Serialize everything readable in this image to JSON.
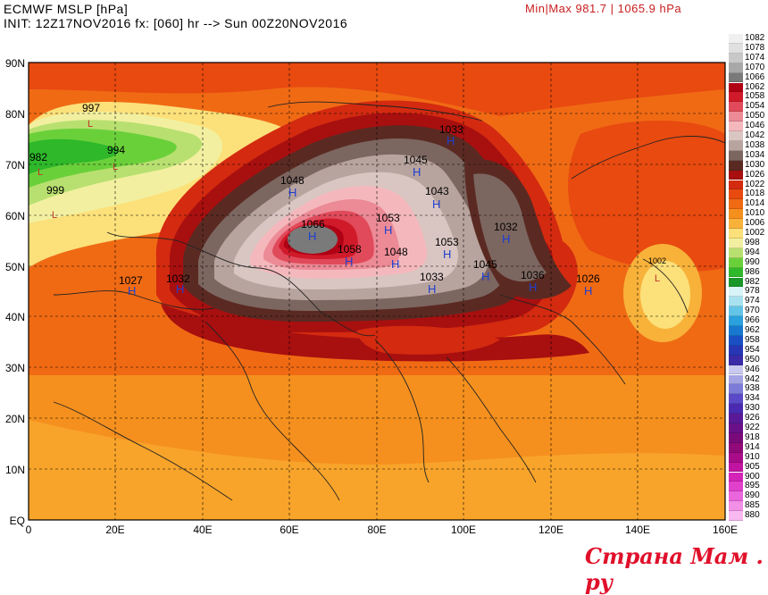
{
  "header": {
    "title": "ECMWF MSLP [hPa]",
    "init": "INIT: 12Z17NOV2016 fx: [060] hr --> Sun 00Z20NOV2016",
    "minmax": "Min|Max 981.7 | 1065.9 hPa"
  },
  "axes": {
    "lat_labels": [
      "90N",
      "80N",
      "70N",
      "60N",
      "50N",
      "40N",
      "30N",
      "20N",
      "10N",
      "EQ"
    ],
    "lon_labels": [
      "0",
      "20E",
      "40E",
      "60E",
      "80E",
      "100E",
      "120E",
      "140E",
      "160E"
    ]
  },
  "colorbar": [
    {
      "label": "1082",
      "color": "#f0f0f0"
    },
    {
      "label": "1078",
      "color": "#e0e0e0"
    },
    {
      "label": "1074",
      "color": "#c8c8c8"
    },
    {
      "label": "1070",
      "color": "#a8a8a8"
    },
    {
      "label": "1066",
      "color": "#7a7a7a"
    },
    {
      "label": "1062",
      "color": "#b00014"
    },
    {
      "label": "1058",
      "color": "#d01a2a"
    },
    {
      "label": "1054",
      "color": "#e04a5a"
    },
    {
      "label": "1050",
      "color": "#ec8a96"
    },
    {
      "label": "1046",
      "color": "#f4b8bc"
    },
    {
      "label": "1042",
      "color": "#d9c6c2"
    },
    {
      "label": "1038",
      "color": "#b8a49e"
    },
    {
      "label": "1034",
      "color": "#7c6660"
    },
    {
      "label": "1030",
      "color": "#5a2a22"
    },
    {
      "label": "1026",
      "color": "#a80f0f"
    },
    {
      "label": "1022",
      "color": "#d32a10"
    },
    {
      "label": "1018",
      "color": "#e84a10"
    },
    {
      "label": "1014",
      "color": "#f06a14"
    },
    {
      "label": "1010",
      "color": "#f5901e"
    },
    {
      "label": "1006",
      "color": "#f8b23a"
    },
    {
      "label": "1002",
      "color": "#fce07a"
    },
    {
      "label": "998",
      "color": "#f2f0a0"
    },
    {
      "label": "994",
      "color": "#b8e070"
    },
    {
      "label": "990",
      "color": "#6ad03a"
    },
    {
      "label": "986",
      "color": "#2eb82a"
    },
    {
      "label": "982",
      "color": "#18962a"
    },
    {
      "label": "978",
      "color": "#d8f4f8"
    },
    {
      "label": "974",
      "color": "#a8e2f0"
    },
    {
      "label": "970",
      "color": "#62c4e6"
    },
    {
      "label": "966",
      "color": "#2aa0dc"
    },
    {
      "label": "962",
      "color": "#1878d0"
    },
    {
      "label": "958",
      "color": "#1a50c4"
    },
    {
      "label": "954",
      "color": "#2636b4"
    },
    {
      "label": "950",
      "color": "#3a2aa8"
    },
    {
      "label": "946",
      "color": "#c8c8f0"
    },
    {
      "label": "942",
      "color": "#a4a4e4"
    },
    {
      "label": "938",
      "color": "#7c7cd8"
    },
    {
      "label": "934",
      "color": "#5a4ac8"
    },
    {
      "label": "930",
      "color": "#4a2ab0"
    },
    {
      "label": "926",
      "color": "#5a1a98"
    },
    {
      "label": "922",
      "color": "#6a1088"
    },
    {
      "label": "918",
      "color": "#7a0a7a"
    },
    {
      "label": "914",
      "color": "#900a78"
    },
    {
      "label": "910",
      "color": "#a80c88"
    },
    {
      "label": "905",
      "color": "#c014a0"
    },
    {
      "label": "900",
      "color": "#d424b8"
    },
    {
      "label": "895",
      "color": "#e040cc"
    },
    {
      "label": "890",
      "color": "#ea66dc"
    },
    {
      "label": "885",
      "color": "#f290e8"
    },
    {
      "label": "880",
      "color": "#f8b8f0"
    }
  ],
  "pressure_labels": [
    "997",
    "994",
    "982",
    "999",
    "1048",
    "1066",
    "1045",
    "1043",
    "1053",
    "1058",
    "1048",
    "1053",
    "1033",
    "1032",
    "1027",
    "1032",
    "1045",
    "1036",
    "1026",
    "1002",
    "1033"
  ],
  "high_marker": "H",
  "low_marker": "L",
  "watermark": "Страна Мам . ру"
}
